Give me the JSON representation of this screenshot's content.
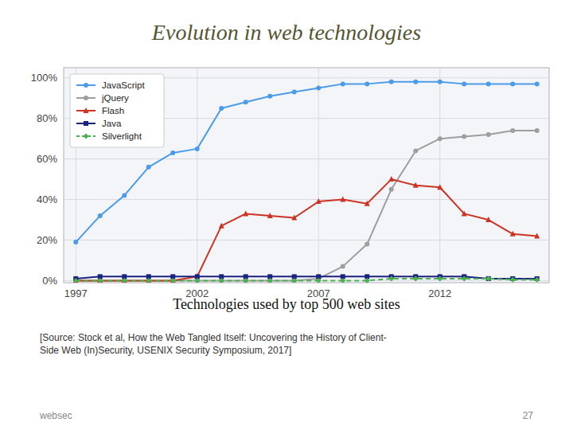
{
  "chart_data": {
    "type": "line",
    "title": "Evolution in web technologies",
    "subtitle": "Technologies used by top 500 web sites",
    "source": "[Source: Stock et al, How the Web Tangled Itself: Uncovering the History of Client-\nSide Web (In)Security, USENIX Security Symposium, 2017]",
    "footer_left": "websec",
    "footer_right": "27",
    "x": [
      1997,
      1998,
      1999,
      2000,
      2001,
      2002,
      2003,
      2004,
      2005,
      2006,
      2007,
      2008,
      2009,
      2010,
      2011,
      2012,
      2013,
      2014,
      2015,
      2016
    ],
    "series": [
      {
        "name": "JavaScript",
        "color": "#4c9be8",
        "marker": "circle",
        "line_style": "solid",
        "values": [
          0.19,
          0.32,
          0.42,
          0.56,
          0.63,
          0.65,
          0.85,
          0.88,
          0.91,
          0.93,
          0.95,
          0.97,
          0.97,
          0.98,
          0.98,
          0.98,
          0.97,
          0.97,
          0.97,
          0.97
        ]
      },
      {
        "name": "jQuery",
        "color": "#9e9e9e",
        "marker": "circle",
        "line_style": "solid",
        "values": [
          0.0,
          0.0,
          0.0,
          0.0,
          0.0,
          0.0,
          0.0,
          0.0,
          0.0,
          0.0,
          0.01,
          0.07,
          0.18,
          0.45,
          0.64,
          0.7,
          0.71,
          0.72,
          0.74,
          0.74
        ]
      },
      {
        "name": "Flash",
        "color": "#cc3322",
        "marker": "triangle",
        "line_style": "solid",
        "values": [
          0.0,
          0.0,
          0.0,
          0.0,
          0.0,
          0.02,
          0.27,
          0.33,
          0.32,
          0.31,
          0.39,
          0.4,
          0.38,
          0.5,
          0.47,
          0.46,
          0.33,
          0.3,
          0.23,
          0.22
        ]
      },
      {
        "name": "Java",
        "color": "#1a237e",
        "marker": "square",
        "line_style": "solid",
        "values": [
          0.01,
          0.02,
          0.02,
          0.02,
          0.02,
          0.02,
          0.02,
          0.02,
          0.02,
          0.02,
          0.02,
          0.02,
          0.02,
          0.02,
          0.02,
          0.02,
          0.02,
          0.01,
          0.01,
          0.01
        ]
      },
      {
        "name": "Silverlight",
        "color": "#4caf50",
        "marker": "diamond",
        "line_style": "dashed",
        "values": [
          0.0,
          0.0,
          0.0,
          0.0,
          0.0,
          0.0,
          0.0,
          0.0,
          0.0,
          0.0,
          0.0,
          0.0,
          0.0,
          0.01,
          0.01,
          0.01,
          0.01,
          0.01,
          0.005,
          0.005
        ]
      }
    ],
    "xlim": [
      1996.5,
      2016.5
    ],
    "ylim": [
      -0.01,
      1.05
    ],
    "xticks": [
      1997,
      2002,
      2007,
      2012
    ],
    "yticks": [
      {
        "value": 0.0,
        "label": "0%"
      },
      {
        "value": 0.2,
        "label": "20%"
      },
      {
        "value": 0.4,
        "label": "40%"
      },
      {
        "value": 0.6,
        "label": "60%"
      },
      {
        "value": 0.8,
        "label": "80%"
      },
      {
        "value": 1.0,
        "label": "100%"
      }
    ],
    "grid": true,
    "legend": "upper left"
  }
}
